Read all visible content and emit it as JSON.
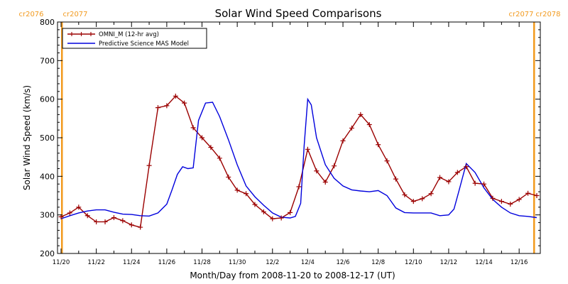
{
  "chart_data": {
    "type": "line",
    "title": "Solar Wind Speed Comparisons",
    "xlabel": "Month/Day from 2008-11-20 to 2008-12-17 (UT)",
    "ylabel": "Solar Wind Speed (km/s)",
    "xlim": [
      0,
      27
    ],
    "ylim": [
      200,
      800
    ],
    "x_ticks": [
      {
        "x": 0,
        "label": "11/20"
      },
      {
        "x": 2,
        "label": "11/22"
      },
      {
        "x": 4,
        "label": "11/24"
      },
      {
        "x": 6,
        "label": "11/26"
      },
      {
        "x": 8,
        "label": "11/28"
      },
      {
        "x": 10,
        "label": "11/30"
      },
      {
        "x": 12,
        "label": "12/2"
      },
      {
        "x": 14,
        "label": "12/4"
      },
      {
        "x": 16,
        "label": "12/6"
      },
      {
        "x": 18,
        "label": "12/8"
      },
      {
        "x": 20,
        "label": "12/10"
      },
      {
        "x": 22,
        "label": "12/12"
      },
      {
        "x": 24,
        "label": "12/14"
      },
      {
        "x": 26,
        "label": "12/16"
      }
    ],
    "y_ticks": [
      200,
      300,
      400,
      500,
      600,
      700,
      800
    ],
    "legend_position": "top-left",
    "carrington_markers": [
      {
        "x": 0.05,
        "label_left": "cr2076",
        "label_right": "cr2077"
      },
      {
        "x": 26.85,
        "label_left": "cr2077",
        "label_right": "cr2078"
      }
    ],
    "series": [
      {
        "name": "OMNI_M (12-hr avg)",
        "color": "#9b0000",
        "marker": "plus",
        "x": [
          0.0,
          0.5,
          1.0,
          1.5,
          2.0,
          2.5,
          3.0,
          3.5,
          4.0,
          4.5,
          5.0,
          5.5,
          6.0,
          6.5,
          7.0,
          7.5,
          8.0,
          8.5,
          9.0,
          9.5,
          10.0,
          10.5,
          11.0,
          11.5,
          12.0,
          12.5,
          13.0,
          13.5,
          14.0,
          14.5,
          15.0,
          15.5,
          16.0,
          16.5,
          17.0,
          17.5,
          18.0,
          18.5,
          19.0,
          19.5,
          20.0,
          20.5,
          21.0,
          21.5,
          22.0,
          22.5,
          23.0,
          23.5,
          24.0,
          24.5,
          25.0,
          25.5,
          26.0,
          26.5,
          27.0
        ],
        "values": [
          295,
          305,
          320,
          298,
          282,
          282,
          293,
          285,
          274,
          268,
          428,
          578,
          583,
          608,
          590,
          526,
          500,
          475,
          447,
          398,
          364,
          355,
          327,
          308,
          290,
          292,
          306,
          373,
          470,
          414,
          385,
          427,
          492,
          525,
          560,
          534,
          482,
          440,
          393,
          352,
          335,
          342,
          355,
          397,
          386,
          410,
          425,
          382,
          380,
          343,
          335,
          328,
          340,
          356,
          350
        ]
      },
      {
        "name": "Predictive Science MAS Model",
        "color": "#0000dd",
        "marker": "none",
        "x": [
          0.0,
          0.5,
          1.0,
          1.5,
          2.0,
          2.5,
          3.0,
          3.5,
          4.0,
          4.5,
          5.0,
          5.5,
          6.0,
          6.3,
          6.6,
          6.9,
          7.2,
          7.5,
          7.8,
          8.2,
          8.6,
          9.0,
          9.5,
          10.0,
          10.5,
          11.0,
          11.5,
          12.0,
          12.5,
          13.0,
          13.3,
          13.6,
          13.8,
          14.0,
          14.2,
          14.5,
          15.0,
          15.5,
          16.0,
          16.5,
          17.0,
          17.5,
          18.0,
          18.5,
          19.0,
          19.5,
          20.0,
          20.5,
          21.0,
          21.5,
          22.0,
          22.3,
          22.6,
          23.0,
          23.5,
          24.0,
          24.5,
          25.0,
          25.5,
          26.0,
          26.5,
          27.0
        ],
        "values": [
          290,
          298,
          305,
          310,
          313,
          313,
          307,
          302,
          301,
          298,
          297,
          305,
          328,
          365,
          405,
          425,
          420,
          422,
          545,
          590,
          592,
          555,
          495,
          430,
          375,
          347,
          325,
          305,
          294,
          292,
          296,
          330,
          480,
          600,
          585,
          500,
          430,
          395,
          375,
          365,
          362,
          360,
          363,
          350,
          318,
          306,
          305,
          305,
          305,
          298,
          300,
          315,
          365,
          433,
          410,
          370,
          340,
          320,
          305,
          298,
          296,
          293
        ]
      }
    ]
  }
}
